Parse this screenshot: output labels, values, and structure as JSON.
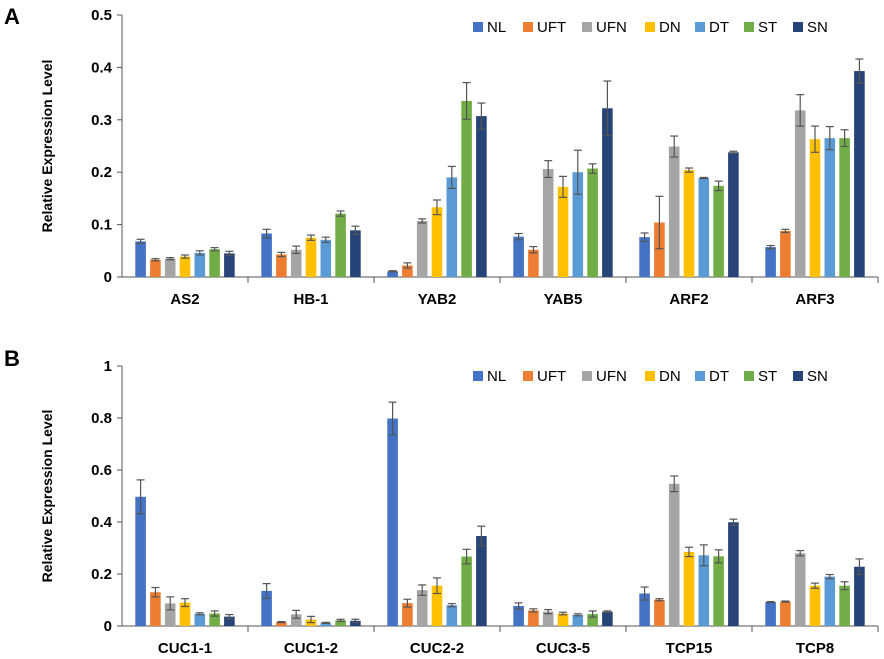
{
  "colors": {
    "series": [
      "#4472c4",
      "#ed7d31",
      "#a5a5a5",
      "#ffc000",
      "#5b9bd5",
      "#70ad47",
      "#264478"
    ],
    "axis": "#555555",
    "error_bar": "#555555"
  },
  "chart_data": [
    {
      "type": "bar",
      "panel": "A",
      "ylabel": "Relative Expression Level",
      "xlabel": "",
      "ylim": [
        0,
        0.5
      ],
      "yticks": [
        0,
        0.1,
        0.2,
        0.3,
        0.4,
        0.5
      ],
      "ytick_labels": [
        "0",
        "0.1",
        "0.2",
        "0.3",
        "0.4",
        "0.5"
      ],
      "legend_position": "top-right",
      "categories": [
        "AS2",
        "HB-1",
        "YAB2",
        "YAB5",
        "ARF2",
        "ARF3"
      ],
      "series": [
        {
          "name": "NL",
          "values": [
            0.068,
            0.083,
            0.011,
            0.077,
            0.076,
            0.057
          ],
          "errors": [
            0.004,
            0.008,
            0.001,
            0.006,
            0.008,
            0.003
          ]
        },
        {
          "name": "UFT",
          "values": [
            0.033,
            0.043,
            0.022,
            0.052,
            0.104,
            0.088
          ],
          "errors": [
            0.002,
            0.004,
            0.005,
            0.006,
            0.05,
            0.003
          ]
        },
        {
          "name": "UFN",
          "values": [
            0.035,
            0.052,
            0.107,
            0.206,
            0.249,
            0.318
          ],
          "errors": [
            0.002,
            0.007,
            0.004,
            0.016,
            0.02,
            0.03
          ]
        },
        {
          "name": "DN",
          "values": [
            0.039,
            0.075,
            0.133,
            0.172,
            0.204,
            0.263
          ],
          "errors": [
            0.003,
            0.005,
            0.014,
            0.02,
            0.004,
            0.025
          ]
        },
        {
          "name": "DT",
          "values": [
            0.046,
            0.071,
            0.19,
            0.2,
            0.189,
            0.265
          ],
          "errors": [
            0.004,
            0.005,
            0.021,
            0.042,
            0.001,
            0.022
          ]
        },
        {
          "name": "ST",
          "values": [
            0.053,
            0.121,
            0.336,
            0.207,
            0.174,
            0.265
          ],
          "errors": [
            0.003,
            0.005,
            0.035,
            0.009,
            0.009,
            0.016
          ]
        },
        {
          "name": "SN",
          "values": [
            0.045,
            0.089,
            0.307,
            0.322,
            0.238,
            0.393
          ],
          "errors": [
            0.004,
            0.008,
            0.025,
            0.052,
            0.002,
            0.023
          ]
        }
      ]
    },
    {
      "type": "bar",
      "panel": "B",
      "ylabel": "Relative Expression Level",
      "xlabel": "",
      "ylim": [
        0,
        1
      ],
      "yticks": [
        0,
        0.2,
        0.4,
        0.6,
        0.8,
        1
      ],
      "ytick_labels": [
        "0",
        "0.2",
        "0.4",
        "0.6",
        "0.8",
        "1"
      ],
      "legend_position": "top-right",
      "categories": [
        "CUC1-1",
        "CUC1-2",
        "CUC2-2",
        "CUC3-5",
        "TCP15",
        "TCP8"
      ],
      "series": [
        {
          "name": "NL",
          "values": [
            0.497,
            0.135,
            0.798,
            0.077,
            0.125,
            0.092
          ],
          "errors": [
            0.065,
            0.028,
            0.063,
            0.012,
            0.025,
            0.002
          ]
        },
        {
          "name": "UFT",
          "values": [
            0.13,
            0.015,
            0.088,
            0.06,
            0.101,
            0.094
          ],
          "errors": [
            0.018,
            0.002,
            0.015,
            0.006,
            0.004,
            0.002
          ]
        },
        {
          "name": "UFN",
          "values": [
            0.087,
            0.045,
            0.138,
            0.055,
            0.547,
            0.28
          ],
          "errors": [
            0.025,
            0.015,
            0.02,
            0.008,
            0.03,
            0.01
          ]
        },
        {
          "name": "DN",
          "values": [
            0.09,
            0.025,
            0.155,
            0.048,
            0.285,
            0.155
          ],
          "errors": [
            0.015,
            0.012,
            0.03,
            0.005,
            0.018,
            0.01
          ]
        },
        {
          "name": "DT",
          "values": [
            0.047,
            0.012,
            0.08,
            0.043,
            0.272,
            0.19
          ],
          "errors": [
            0.004,
            0.002,
            0.006,
            0.004,
            0.04,
            0.008
          ]
        },
        {
          "name": "ST",
          "values": [
            0.048,
            0.022,
            0.267,
            0.046,
            0.268,
            0.155
          ],
          "errors": [
            0.01,
            0.004,
            0.028,
            0.012,
            0.025,
            0.015
          ]
        },
        {
          "name": "SN",
          "values": [
            0.036,
            0.02,
            0.346,
            0.055,
            0.399,
            0.228
          ],
          "errors": [
            0.008,
            0.006,
            0.038,
            0.003,
            0.012,
            0.03
          ]
        }
      ]
    }
  ]
}
